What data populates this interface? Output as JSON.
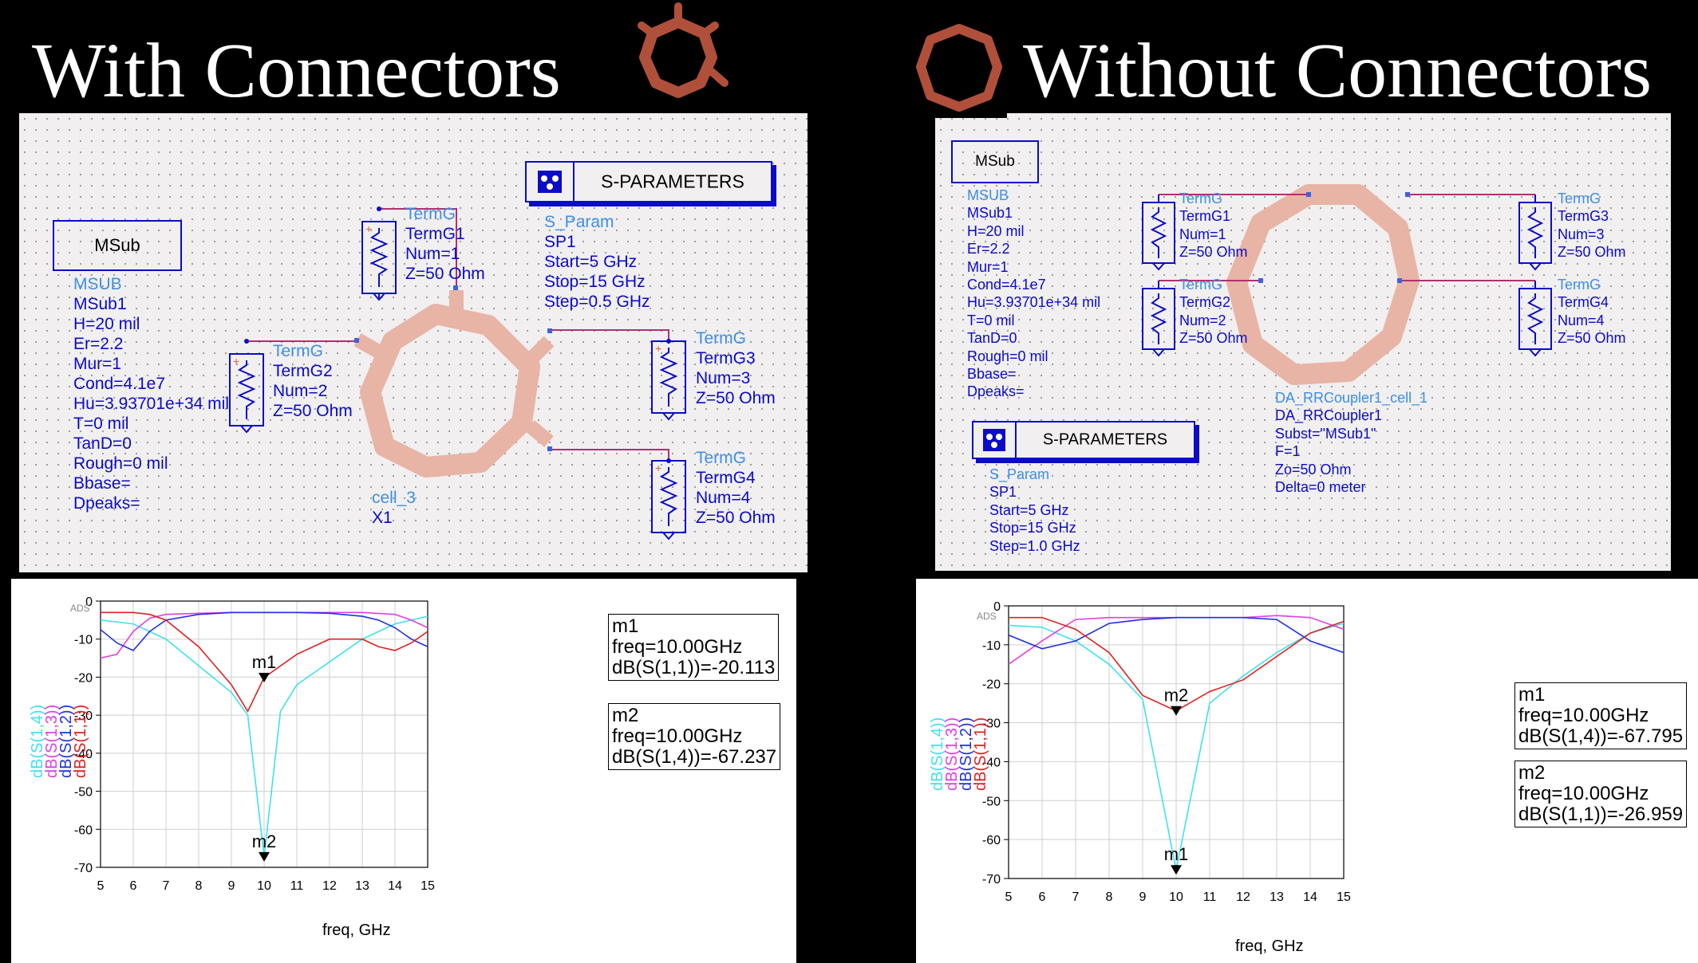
{
  "left": {
    "heading": "With Connectors",
    "msub_box": "MSub",
    "msub_params": [
      "MSUB",
      "MSub1",
      "H=20 mil",
      "Er=2.2",
      "Mur=1",
      "Cond=4.1e7",
      "Hu=3.93701e+34 mil",
      "T=0 mil",
      "TanD=0",
      "Rough=0 mil",
      "Bbase=",
      "Dpeaks="
    ],
    "sparam_box": "S-PARAMETERS",
    "sparam_params": [
      "S_Param",
      "SP1",
      "Start=5 GHz",
      "Stop=15 GHz",
      "Step=0.5 GHz"
    ],
    "term1": [
      "TermG",
      "TermG1",
      "Num=1",
      "Z=50 Ohm"
    ],
    "term2": [
      "TermG",
      "TermG2",
      "Num=2",
      "Z=50 Ohm"
    ],
    "term3": [
      "TermG",
      "TermG3",
      "Num=3",
      "Z=50 Ohm"
    ],
    "term4": [
      "TermG",
      "TermG4",
      "Num=4",
      "Z=50 Ohm"
    ],
    "cell": [
      "cell_3",
      "X1"
    ],
    "plot": {
      "ads": "ADS",
      "xlabel": "freq, GHz",
      "ylabels": [
        "dB(S(1,4))",
        "dB(S(1,3))",
        "dB(S(1,2))",
        "dB(S(1,1))"
      ],
      "m1": [
        "m1",
        "freq=10.00GHz",
        "dB(S(1,1))=-20.113"
      ],
      "m2": [
        "m2",
        "freq=10.00GHz",
        "dB(S(1,4))=-67.237"
      ],
      "marker_labels": [
        "m1",
        "m2"
      ]
    }
  },
  "right": {
    "heading": "Without Connectors",
    "msub_box": "MSub",
    "msub_params": [
      "MSUB",
      "MSub1",
      "H=20 mil",
      "Er=2.2",
      "Mur=1",
      "Cond=4.1e7",
      "Hu=3.93701e+34 mil",
      "T=0 mil",
      "TanD=0",
      "Rough=0 mil",
      "Bbase=",
      "Dpeaks="
    ],
    "sparam_box": "S-PARAMETERS",
    "sparam_params": [
      "S_Param",
      "SP1",
      "Start=5 GHz",
      "Stop=15 GHz",
      "Step=1.0 GHz"
    ],
    "term1": [
      "TermG",
      "TermG1",
      "Num=1",
      "Z=50 Ohm"
    ],
    "term2": [
      "TermG",
      "TermG2",
      "Num=2",
      "Z=50 Ohm"
    ],
    "term3": [
      "TermG",
      "TermG3",
      "Num=3",
      "Z=50 Ohm"
    ],
    "term4": [
      "TermG",
      "TermG4",
      "Num=4",
      "Z=50 Ohm"
    ],
    "cell": [
      "DA_RRCoupler1_cell_1",
      "DA_RRCoupler1",
      "Subst=\"MSub1\"",
      "F=1",
      "Zo=50 Ohm",
      "Delta=0 meter"
    ],
    "plot": {
      "ads": "ADS",
      "xlabel": "freq, GHz",
      "ylabels": [
        "dB(S(1,4))",
        "dB(S(1,3))",
        "dB(S(1,2))",
        "dB(S(1,1))"
      ],
      "m1": [
        "m1",
        "freq=10.00GHz",
        "dB(S(1,4))=-67.795"
      ],
      "m2": [
        "m2",
        "freq=10.00GHz",
        "dB(S(1,1))=-26.959"
      ],
      "marker_labels": [
        "m2",
        "m1"
      ]
    }
  },
  "colors": {
    "s14": "#40e0f0",
    "s13": "#e040e0",
    "s12": "#2030e0",
    "s11": "#e02020",
    "ring": "#e8b4a6",
    "wire": "#b03070",
    "label_dark": "#0b0bc8",
    "label_light": "#3d8fe6"
  },
  "chart_data": [
    {
      "type": "line",
      "xlabel": "freq, GHz",
      "ylabel": "",
      "xlim": [
        5,
        15
      ],
      "ylim": [
        -70,
        0
      ],
      "xticks": [
        5,
        6,
        7,
        8,
        9,
        10,
        11,
        12,
        13,
        14,
        15
      ],
      "yticks": [
        0,
        -10,
        -20,
        -30,
        -40,
        -50,
        -60,
        -70
      ],
      "series": [
        {
          "name": "dB(S(1,4))",
          "color": "#40e0f0",
          "x": [
            5,
            6,
            7,
            8,
            9,
            9.5,
            10,
            10.5,
            11,
            12,
            13,
            14,
            15
          ],
          "y": [
            -5,
            -6,
            -10,
            -17,
            -24,
            -30,
            -67.2,
            -29,
            -22,
            -16,
            -10,
            -6,
            -4
          ]
        },
        {
          "name": "dB(S(1,3))",
          "color": "#e040e0",
          "x": [
            5,
            5.5,
            6,
            6.5,
            7,
            8,
            9,
            10,
            11,
            12,
            13,
            14,
            14.5,
            15
          ],
          "y": [
            -15,
            -14,
            -8,
            -4.5,
            -3.5,
            -3.2,
            -3,
            -3,
            -3,
            -3,
            -3,
            -3.5,
            -5,
            -7
          ]
        },
        {
          "name": "dB(S(1,2))",
          "color": "#2030e0",
          "x": [
            5,
            5.5,
            6,
            6.5,
            7,
            8,
            9,
            10,
            11,
            12,
            13,
            13.5,
            14,
            14.5,
            15
          ],
          "y": [
            -7.5,
            -11,
            -13,
            -8,
            -5,
            -3.5,
            -3,
            -3,
            -3,
            -3.2,
            -4,
            -5,
            -7,
            -10,
            -12
          ]
        },
        {
          "name": "dB(S(1,1))",
          "color": "#e02020",
          "x": [
            5,
            6,
            6.5,
            7,
            8,
            9,
            9.5,
            10,
            11,
            12,
            13,
            13.5,
            14,
            14.5,
            15
          ],
          "y": [
            -3,
            -3,
            -3.5,
            -5,
            -12,
            -22,
            -29,
            -20.1,
            -14,
            -10,
            -10,
            -12,
            -13,
            -11,
            -8
          ]
        }
      ],
      "markers": [
        {
          "name": "m1",
          "x": 10,
          "y": -20.113
        },
        {
          "name": "m2",
          "x": 10,
          "y": -67.237
        }
      ]
    },
    {
      "type": "line",
      "xlabel": "freq, GHz",
      "ylabel": "",
      "xlim": [
        5,
        15
      ],
      "ylim": [
        -70,
        0
      ],
      "xticks": [
        5,
        6,
        7,
        8,
        9,
        10,
        11,
        12,
        13,
        14,
        15
      ],
      "yticks": [
        0,
        -10,
        -20,
        -30,
        -40,
        -50,
        -60,
        -70
      ],
      "series": [
        {
          "name": "dB(S(1,4))",
          "color": "#40e0f0",
          "x": [
            5,
            6,
            7,
            8,
            9,
            10,
            11,
            12,
            13,
            14,
            15
          ],
          "y": [
            -5,
            -5.5,
            -9,
            -15,
            -24,
            -67.8,
            -25,
            -18,
            -12,
            -7,
            -4.5
          ]
        },
        {
          "name": "dB(S(1,3))",
          "color": "#e040e0",
          "x": [
            5,
            6,
            7,
            8,
            9,
            10,
            11,
            12,
            13,
            14,
            15
          ],
          "y": [
            -15,
            -9,
            -3.5,
            -3,
            -3,
            -3,
            -3,
            -3,
            -2.5,
            -3,
            -6
          ]
        },
        {
          "name": "dB(S(1,2))",
          "color": "#2030e0",
          "x": [
            5,
            6,
            7,
            8,
            9,
            10,
            11,
            12,
            13,
            14,
            15
          ],
          "y": [
            -7.5,
            -11,
            -9,
            -4.5,
            -3.5,
            -3,
            -3,
            -3,
            -3.5,
            -9,
            -12
          ]
        },
        {
          "name": "dB(S(1,1))",
          "color": "#e02020",
          "x": [
            5,
            6,
            7,
            8,
            9,
            10,
            11,
            12,
            13,
            14,
            15
          ],
          "y": [
            -3,
            -3,
            -6,
            -12,
            -23,
            -26.96,
            -22,
            -19,
            -13,
            -7,
            -4
          ]
        }
      ],
      "markers": [
        {
          "name": "m2",
          "x": 10,
          "y": -26.959
        },
        {
          "name": "m1",
          "x": 10,
          "y": -67.795
        }
      ]
    }
  ]
}
